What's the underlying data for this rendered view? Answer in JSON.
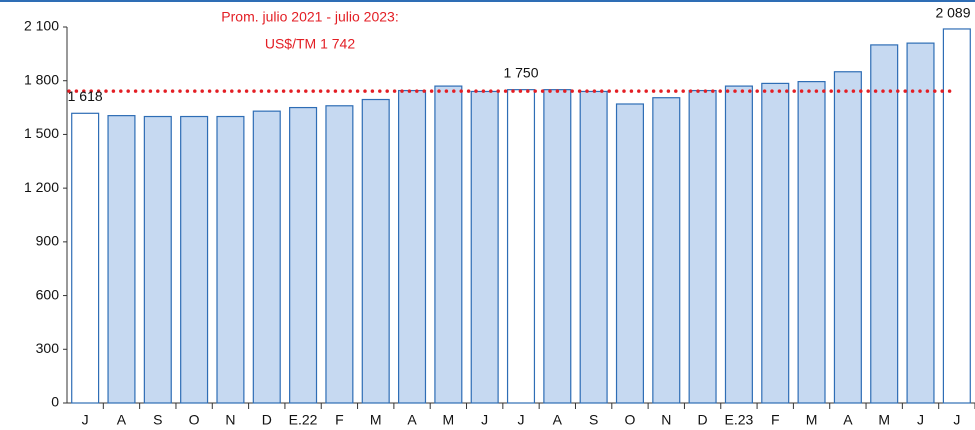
{
  "chart_data": {
    "type": "bar",
    "annotation": [
      "Prom. julio 2021 - julio 2023:",
      "US$/TM 1 742"
    ],
    "reference_line": {
      "value": 1742,
      "color": "#e31e24"
    },
    "categories": [
      "J",
      "A",
      "S",
      "O",
      "N",
      "D",
      "E.22",
      "F",
      "M",
      "A",
      "M",
      "J",
      "J",
      "A",
      "S",
      "O",
      "N",
      "D",
      "E.23",
      "F",
      "M",
      "A",
      "M",
      "J",
      "J"
    ],
    "values": [
      1618,
      1605,
      1600,
      1600,
      1600,
      1630,
      1650,
      1660,
      1695,
      1745,
      1770,
      1740,
      1750,
      1750,
      1740,
      1670,
      1705,
      1745,
      1770,
      1785,
      1795,
      1850,
      2000,
      2010,
      2089
    ],
    "value_labels": [
      "1 618",
      null,
      null,
      null,
      null,
      null,
      null,
      null,
      null,
      null,
      null,
      null,
      "1 750",
      null,
      null,
      null,
      null,
      null,
      null,
      null,
      null,
      null,
      null,
      null,
      "2 089"
    ],
    "color": "#c6d9f1",
    "edge_color": "#2e6db5",
    "highlight_color": "#ffffff",
    "ylim": [
      0,
      2100
    ],
    "yticks": [
      0,
      300,
      600,
      900,
      {
        "value": 1200,
        "label": "1 200"
      },
      {
        "value": 1500,
        "label": "1 500"
      },
      {
        "value": 1800,
        "label": "1 800"
      },
      {
        "value": 2100,
        "label": "2 100"
      }
    ]
  }
}
